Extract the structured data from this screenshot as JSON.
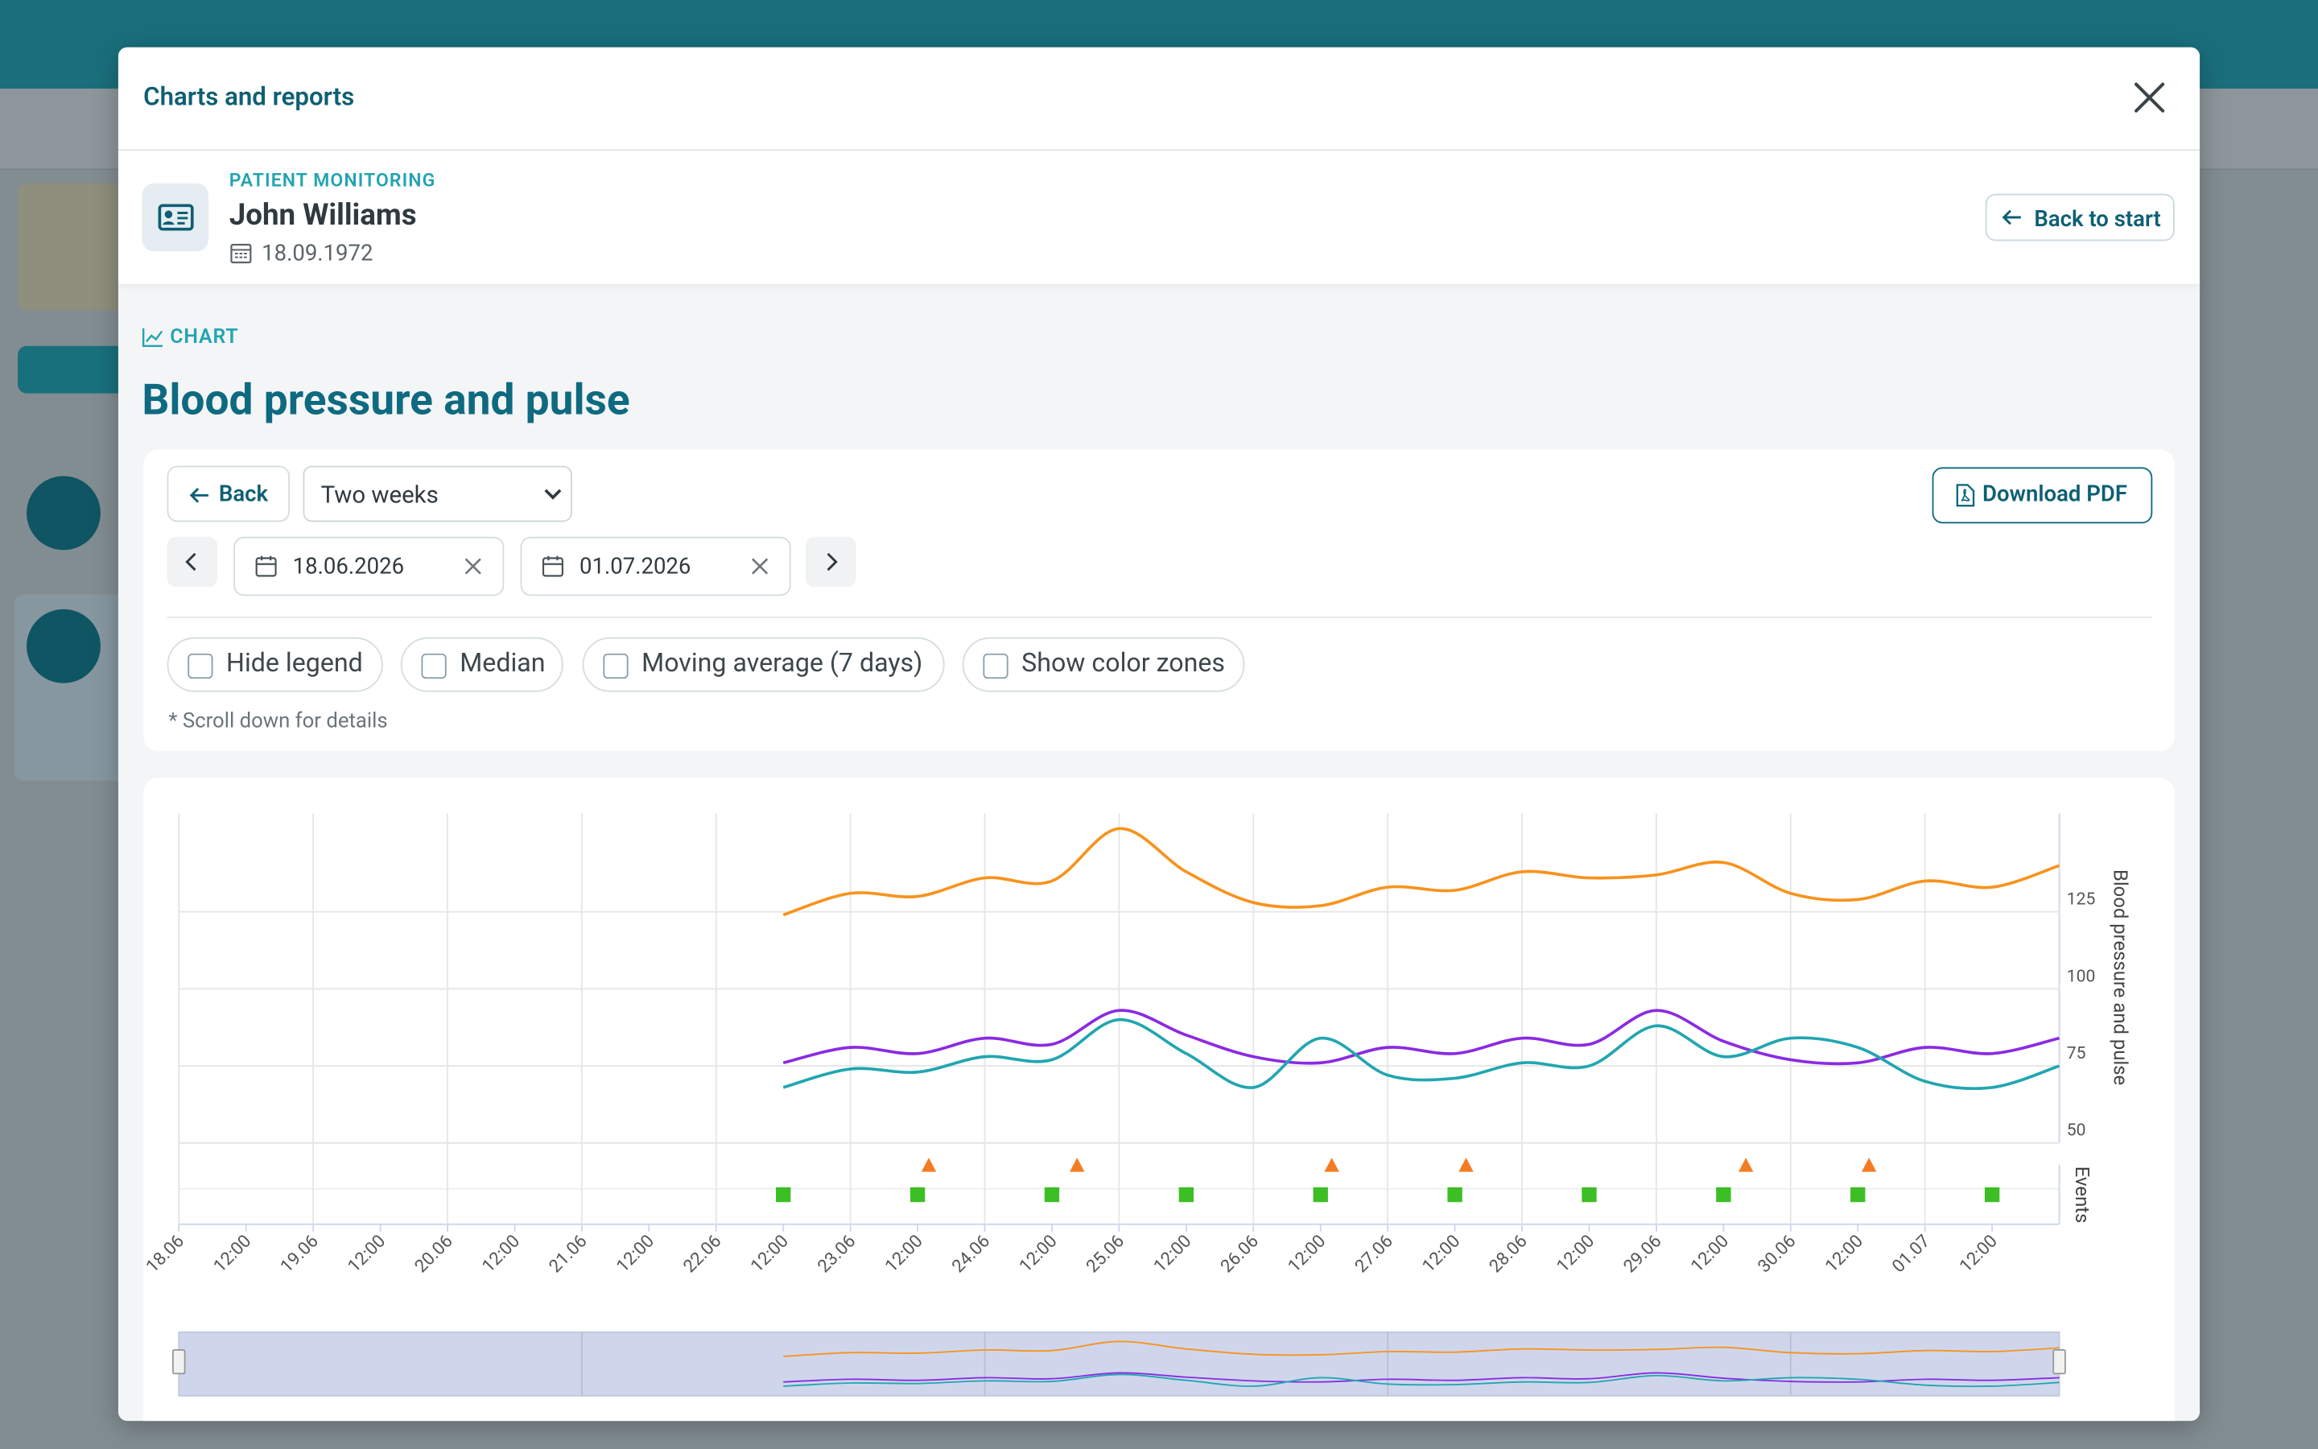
{
  "modal": {
    "title": "Charts and reports"
  },
  "patient": {
    "label": "PATIENT MONITORING",
    "name": "John Williams",
    "birth_date": "18.09.1972",
    "back_button": "Back to start"
  },
  "section": {
    "label": "CHART",
    "title": "Blood pressure and pulse"
  },
  "controls": {
    "back": "Back",
    "period": "Two weeks",
    "download": "Download PDF",
    "date_from": "18.06.2026",
    "date_to": "01.07.2026",
    "options": [
      "Hide legend",
      "Median",
      "Moving average (7 days)",
      "Show color zones"
    ],
    "note": "* Scroll down for details"
  },
  "chart_data": {
    "type": "line",
    "ylabel": "Blood pressure and pulse",
    "events_label": "Events",
    "smooth": true,
    "grid": true,
    "x": [
      "22.06 12:00",
      "23.06 00:00",
      "23.06 12:00",
      "24.06 00:00",
      "24.06 12:00",
      "25.06 00:00",
      "25.06 12:00",
      "26.06 00:00",
      "26.06 12:00",
      "27.06 00:00",
      "27.06 12:00",
      "28.06 00:00",
      "28.06 12:00",
      "29.06 00:00",
      "29.06 12:00",
      "30.06 00:00",
      "30.06 12:00",
      "01.07 00:00",
      "01.07 12:00",
      "02.07 00:00"
    ],
    "series": [
      {
        "color": "#f7931e",
        "values": [
          124,
          131,
          130,
          136,
          135,
          152,
          138,
          128,
          127,
          133,
          132,
          138,
          136,
          137,
          141,
          131,
          129,
          135,
          133,
          140
        ]
      },
      {
        "color": "#8a2be2",
        "values": [
          76,
          81,
          79,
          84,
          82,
          93,
          85,
          78,
          76,
          81,
          79,
          84,
          82,
          93,
          83,
          77,
          76,
          81,
          79,
          84
        ]
      },
      {
        "color": "#22a6b0",
        "values": [
          68,
          74,
          73,
          78,
          77,
          90,
          79,
          68,
          84,
          72,
          71,
          76,
          75,
          88,
          78,
          84,
          81,
          70,
          68,
          75
        ]
      }
    ],
    "events": [
      {
        "color": "#f47c20",
        "marker": "triangle",
        "x": [
          "23.06 14:00",
          "24.06 16:30",
          "26.06 14:00",
          "27.06 14:00",
          "29.06 16:00",
          "30.06 14:00"
        ]
      },
      {
        "color": "#3cbf24",
        "marker": "square",
        "x": [
          "22.06 12:00",
          "23.06 12:00",
          "24.06 12:00",
          "25.06 12:00",
          "26.06 12:00",
          "27.06 12:00",
          "28.06 12:00",
          "29.06 12:00",
          "30.06 12:00",
          "01.07 12:00"
        ]
      }
    ],
    "xlim": [
      "18.06 00:00",
      "02.07 00:00"
    ],
    "xticks": [
      {
        "value": "18.06 00:00",
        "label": "18.06"
      },
      {
        "value": "18.06 12:00",
        "label": "12:00"
      },
      {
        "value": "19.06 00:00",
        "label": "19.06"
      },
      {
        "value": "19.06 12:00",
        "label": "12:00"
      },
      {
        "value": "20.06 00:00",
        "label": "20.06"
      },
      {
        "value": "20.06 12:00",
        "label": "12:00"
      },
      {
        "value": "21.06 00:00",
        "label": "21.06"
      },
      {
        "value": "21.06 12:00",
        "label": "12:00"
      },
      {
        "value": "22.06 00:00",
        "label": "22.06"
      },
      {
        "value": "22.06 12:00",
        "label": "12:00"
      },
      {
        "value": "23.06 00:00",
        "label": "23.06"
      },
      {
        "value": "23.06 12:00",
        "label": "12:00"
      },
      {
        "value": "24.06 00:00",
        "label": "24.06"
      },
      {
        "value": "24.06 12:00",
        "label": "12:00"
      },
      {
        "value": "25.06 00:00",
        "label": "25.06"
      },
      {
        "value": "25.06 12:00",
        "label": "12:00"
      },
      {
        "value": "26.06 00:00",
        "label": "26.06"
      },
      {
        "value": "26.06 12:00",
        "label": "12:00"
      },
      {
        "value": "27.06 00:00",
        "label": "27.06"
      },
      {
        "value": "27.06 12:00",
        "label": "12:00"
      },
      {
        "value": "28.06 00:00",
        "label": "28.06"
      },
      {
        "value": "28.06 12:00",
        "label": "12:00"
      },
      {
        "value": "29.06 00:00",
        "label": "29.06"
      },
      {
        "value": "29.06 12:00",
        "label": "12:00"
      },
      {
        "value": "30.06 00:00",
        "label": "30.06"
      },
      {
        "value": "30.06 12:00",
        "label": "12:00"
      },
      {
        "value": "01.07 00:00",
        "label": "01.07"
      },
      {
        "value": "01.07 12:00",
        "label": "12:00"
      }
    ],
    "ylim": [
      50,
      157
    ],
    "yticks": [
      50,
      75,
      100,
      125
    ]
  }
}
